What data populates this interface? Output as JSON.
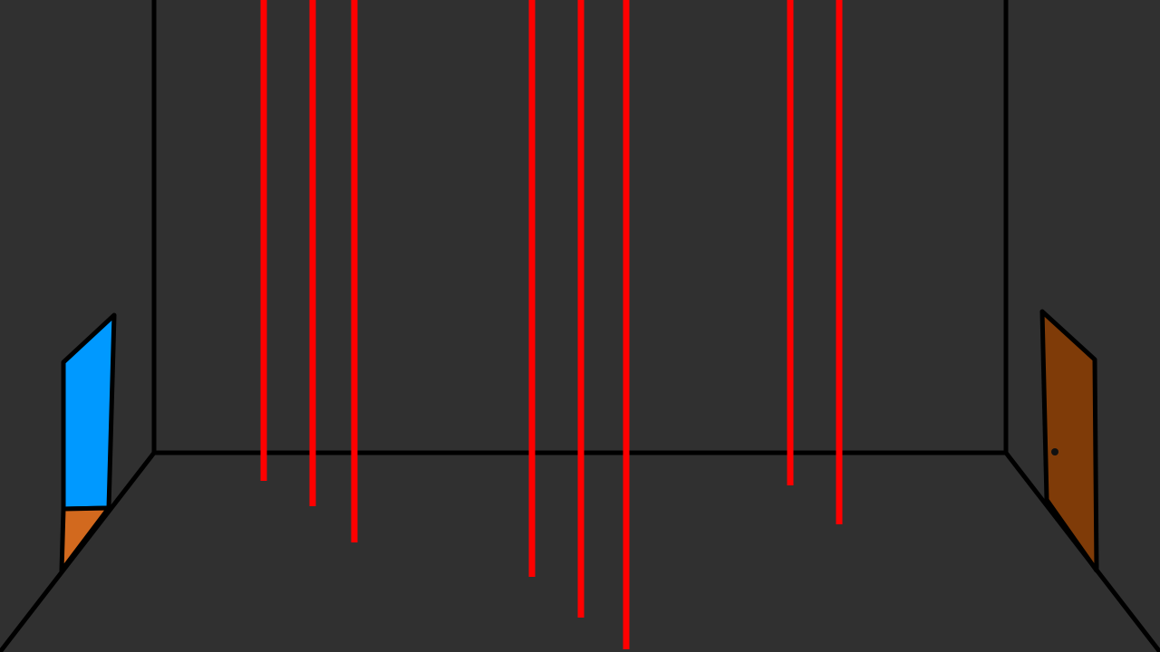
{
  "scene": {
    "name": "laser-room",
    "background_color": "#303030",
    "outline_color": "#000000",
    "laser_color": "#ff0000",
    "left_portal": {
      "icon": "portal-window",
      "glass_color": "#0099ff",
      "frame_color": "#d2691e"
    },
    "right_door": {
      "icon": "door",
      "color": "#7f3b08",
      "knob_color": "#111111"
    },
    "laser_beams": [
      {
        "id": 1,
        "depth_rank": 1
      },
      {
        "id": 2,
        "depth_rank": 2
      },
      {
        "id": 3,
        "depth_rank": 3
      },
      {
        "id": 4,
        "depth_rank": 4
      },
      {
        "id": 5,
        "depth_rank": 5
      },
      {
        "id": 6,
        "depth_rank": 6
      },
      {
        "id": 7,
        "depth_rank": 7
      },
      {
        "id": 8,
        "depth_rank": 8
      }
    ]
  }
}
